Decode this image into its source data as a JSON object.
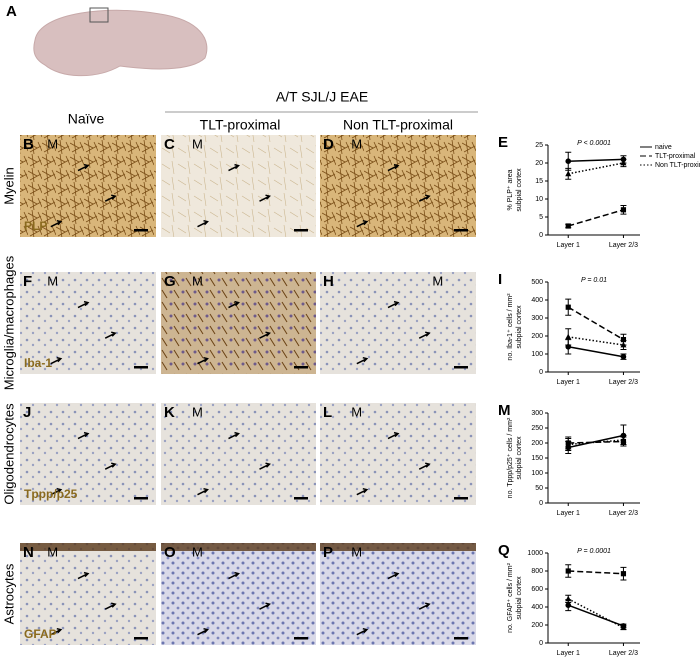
{
  "panel_a": {
    "label": "A"
  },
  "header": {
    "group": "A/T SJL/J EAE",
    "columns": [
      "Naïve",
      "TLT-proximal",
      "Non TLT-proximal"
    ]
  },
  "meninges": "M",
  "rows": [
    {
      "label": "Myelin",
      "stain": "PLP",
      "panels": [
        "B",
        "C",
        "D"
      ],
      "chart_panel": "E"
    },
    {
      "label": "Microglia/macrophages",
      "stain": "Iba-1",
      "panels": [
        "F",
        "G",
        "H"
      ],
      "chart_panel": "I"
    },
    {
      "label": "Oligodendrocytes",
      "stain": "Tppp/p25",
      "panels": [
        "J",
        "K",
        "L"
      ],
      "chart_panel": "M"
    },
    {
      "label": "Astrocytes",
      "stain": "GFAP",
      "panels": [
        "N",
        "O",
        "P"
      ],
      "chart_panel": "Q"
    }
  ],
  "chart_data": [
    {
      "type": "line",
      "ylabel": [
        "% PLP⁺ area",
        "subpial cortex"
      ],
      "annotation": "P < 0.0001",
      "legend": true,
      "categories": [
        "Layer 1",
        "Layer 2/3"
      ],
      "ylim": [
        0,
        25
      ],
      "yticks": [
        0,
        5,
        10,
        15,
        20,
        25
      ],
      "series": [
        {
          "name": "naive",
          "color": "#000000",
          "dash": "solid",
          "marker": "circle",
          "values": [
            20.5,
            21
          ],
          "errors": [
            2.5,
            1
          ]
        },
        {
          "name": "TLT-proximal",
          "color": "#000000",
          "dash": "dashed",
          "marker": "square",
          "values": [
            2.5,
            7
          ],
          "errors": [
            0.5,
            1.2
          ]
        },
        {
          "name": "Non TLT-proximal",
          "color": "#000000",
          "dash": "dotted",
          "marker": "triangle",
          "values": [
            17,
            20
          ],
          "errors": [
            1.5,
            1
          ]
        }
      ]
    },
    {
      "type": "line",
      "ylabel": [
        "no. Iba-1⁺ cells / mm²",
        "subpial cortex"
      ],
      "annotation": "P = 0.01",
      "legend": false,
      "categories": [
        "Layer 1",
        "Layer 2/3"
      ],
      "ylim": [
        0,
        500
      ],
      "yticks": [
        0,
        100,
        200,
        300,
        400,
        500
      ],
      "series": [
        {
          "color": "#000000",
          "dash": "solid",
          "marker": "circle",
          "values": [
            140,
            85
          ],
          "errors": [
            40,
            15
          ]
        },
        {
          "color": "#000000",
          "dash": "dashed",
          "marker": "square",
          "values": [
            360,
            180
          ],
          "errors": [
            45,
            30
          ]
        },
        {
          "color": "#000000",
          "dash": "dotted",
          "marker": "triangle",
          "values": [
            195,
            150
          ],
          "errors": [
            45,
            25
          ]
        }
      ]
    },
    {
      "type": "line",
      "ylabel": [
        "no. Tppp/p25⁺ cells / mm²",
        "subpial cortex"
      ],
      "legend": false,
      "categories": [
        "Layer 1",
        "Layer 2/3"
      ],
      "ylim": [
        0,
        300
      ],
      "yticks": [
        0,
        50,
        100,
        150,
        200,
        250,
        300
      ],
      "series": [
        {
          "color": "#000000",
          "dash": "solid",
          "marker": "circle",
          "values": [
            185,
            225
          ],
          "errors": [
            20,
            35
          ]
        },
        {
          "color": "#000000",
          "dash": "dashed",
          "marker": "square",
          "values": [
            200,
            205
          ],
          "errors": [
            20,
            15
          ]
        },
        {
          "color": "#000000",
          "dash": "dotted",
          "marker": "triangle",
          "values": [
            195,
            210
          ],
          "errors": [
            20,
            15
          ]
        }
      ]
    },
    {
      "type": "line",
      "ylabel": [
        "no. GFAP⁺ cells / mm²",
        "subpial cortex"
      ],
      "annotation": "P = 0.0001",
      "legend": false,
      "categories": [
        "Layer 1",
        "Layer 2/3"
      ],
      "ylim": [
        0,
        1000
      ],
      "yticks": [
        0,
        200,
        400,
        600,
        800,
        1000
      ],
      "series": [
        {
          "color": "#000000",
          "dash": "solid",
          "marker": "circle",
          "values": [
            420,
            190
          ],
          "errors": [
            60,
            20
          ]
        },
        {
          "color": "#000000",
          "dash": "dashed",
          "marker": "square",
          "values": [
            800,
            770
          ],
          "errors": [
            70,
            70
          ]
        },
        {
          "color": "#000000",
          "dash": "dotted",
          "marker": "triangle",
          "values": [
            490,
            170
          ],
          "errors": [
            40,
            20
          ]
        }
      ]
    }
  ]
}
